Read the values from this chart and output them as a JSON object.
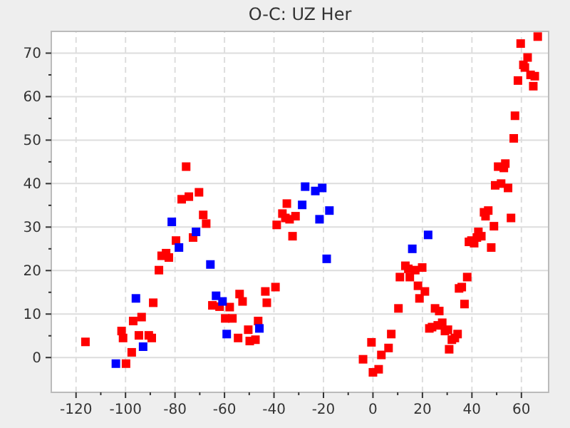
{
  "chart_data": {
    "type": "scatter",
    "title": "O-C: UZ Her",
    "marker": "square",
    "grid": true,
    "xlim": [
      -130,
      71
    ],
    "ylim": [
      -8,
      75
    ],
    "xticks": [
      -120,
      -100,
      -80,
      -60,
      -40,
      -20,
      0,
      20,
      40,
      60
    ],
    "yticks": [
      0,
      10,
      20,
      30,
      40,
      50,
      60,
      70
    ],
    "series": [
      {
        "color": "#ff0000",
        "x": [
          -116.2,
          -101.6,
          -101,
          -99.8,
          -97.5,
          -96.9,
          -94.6,
          -93.5,
          -90.6,
          -89.4,
          -88.8,
          -86.5,
          -85.4,
          -83.6,
          -82.5,
          -79.6,
          -77.3,
          -75.5,
          -74.4,
          -72.7,
          -70.3,
          -68.6,
          -67.4,
          -64.9,
          -62,
          -59.7,
          -57.9,
          -56.8,
          -54.5,
          -53.9,
          -52.7,
          -50.4,
          -49.8,
          -47.5,
          -46.4,
          -43.5,
          -42.9,
          -39.4,
          -38.9,
          -36.6,
          -35.4,
          -34.8,
          -33.7,
          -32.5,
          -31.3,
          -4,
          -0.6,
          0,
          2.3,
          3.4,
          6.3,
          7.4,
          10.3,
          10.9,
          13.1,
          14.3,
          14.9,
          17.1,
          18.2,
          18.8,
          19.9,
          21,
          22.8,
          23.9,
          25.1,
          26.2,
          26.8,
          28,
          29.1,
          30.3,
          30.8,
          31.9,
          33.1,
          34.2,
          34.8,
          35.9,
          37,
          38.1,
          38.8,
          39.8,
          40.9,
          42,
          42.6,
          43.8,
          44.9,
          45.5,
          46.6,
          47.8,
          48.9,
          49.4,
          50.6,
          51.8,
          52.9,
          53.5,
          54.6,
          55.8,
          56.9,
          57.4,
          58.6,
          59.7,
          60.8,
          61.4,
          62.5,
          63.7,
          64.8,
          65.4,
          66.6
        ],
        "values": [
          3.6,
          6.1,
          4.5,
          -1.4,
          1.2,
          8.4,
          5.1,
          9.3,
          5.1,
          4.5,
          12.6,
          20.1,
          23.4,
          24,
          23,
          26.9,
          36.4,
          43.9,
          37,
          27.6,
          38,
          32.8,
          30.8,
          12,
          11.7,
          9,
          11.6,
          9,
          4.5,
          14.6,
          12.9,
          6.4,
          3.8,
          4.1,
          8.4,
          15.2,
          12.6,
          16.2,
          30.5,
          33.1,
          32.1,
          35.4,
          31.8,
          27.9,
          32.5,
          -0.4,
          3.5,
          -3.4,
          -2.7,
          0.6,
          2.2,
          5.4,
          11.3,
          18.5,
          21.1,
          20.4,
          18.5,
          20.1,
          16.5,
          13.6,
          20.7,
          15.2,
          6.7,
          7,
          11.3,
          7.4,
          10.7,
          8,
          6.1,
          6.4,
          1.9,
          4.1,
          4.5,
          5.4,
          15.9,
          16.2,
          12.3,
          18.5,
          26.6,
          26.9,
          26.3,
          27.6,
          28.9,
          27.9,
          33.4,
          32.5,
          33.8,
          25.3,
          30.2,
          39.6,
          43.9,
          40,
          43.6,
          44.6,
          39,
          32.1,
          50.4,
          55.6,
          63.7,
          72.2,
          67.3,
          66.7,
          69,
          65,
          62.4,
          64.7,
          73.8
        ]
      },
      {
        "color": "#0000ff",
        "x": [
          -103.9,
          -95.8,
          -92.9,
          -81.3,
          -78.4,
          -71.5,
          -65.7,
          -63.4,
          -60.8,
          -59.1,
          -45.9,
          -28.6,
          -27.4,
          -23.3,
          -21.6,
          -20.5,
          -18.7,
          -17.6,
          15.9,
          22.3
        ],
        "values": [
          -1.4,
          13.6,
          2.5,
          31.2,
          25.3,
          28.9,
          21.4,
          14.2,
          12.9,
          5.4,
          6.7,
          35.1,
          39.3,
          38.3,
          31.8,
          39,
          22.7,
          33.8,
          25,
          28.2
        ]
      }
    ]
  }
}
